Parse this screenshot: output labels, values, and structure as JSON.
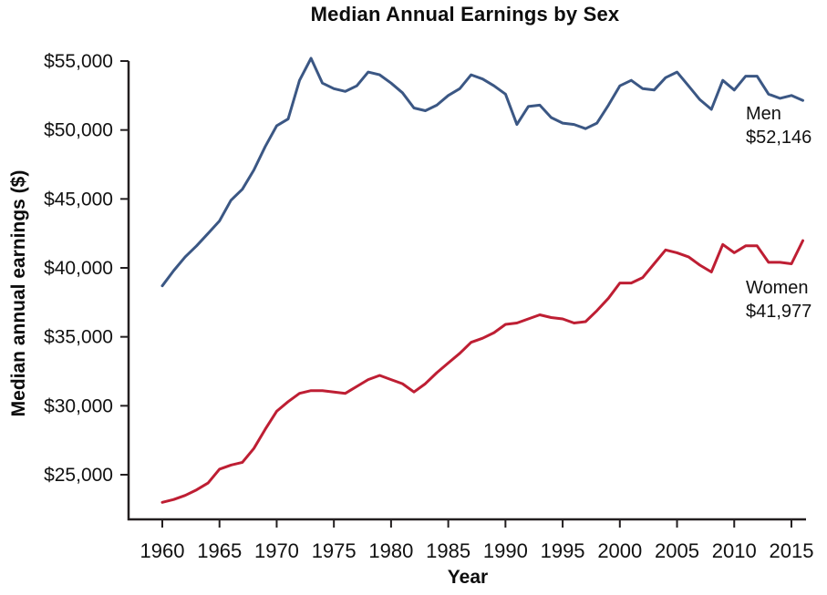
{
  "chart_data": {
    "type": "line",
    "title": "Median Annual Earnings by Sex",
    "xlabel": "Year",
    "ylabel": "Median annual earnings ($)",
    "grid": false,
    "legend_position": "end-of-line-labels",
    "x_axis": {
      "min": 1960,
      "max": 2016,
      "tick_years": [
        1960,
        1965,
        1970,
        1975,
        1980,
        1985,
        1990,
        1995,
        2000,
        2005,
        2010,
        2015
      ]
    },
    "y_axis": {
      "min": 25000,
      "max": 55000,
      "ticks": [
        {
          "value": 55000,
          "label": "$55,000"
        },
        {
          "value": 50000,
          "label": "$50,000"
        },
        {
          "value": 45000,
          "label": "$45,000"
        },
        {
          "value": 40000,
          "label": "$40,000"
        },
        {
          "value": 35000,
          "label": "$35,000"
        },
        {
          "value": 30000,
          "label": "$30,000"
        },
        {
          "value": 25000,
          "label": "$25,000"
        }
      ]
    },
    "years": [
      1960,
      1961,
      1962,
      1963,
      1964,
      1965,
      1966,
      1967,
      1968,
      1969,
      1970,
      1971,
      1972,
      1973,
      1974,
      1975,
      1976,
      1977,
      1978,
      1979,
      1980,
      1981,
      1982,
      1983,
      1984,
      1985,
      1986,
      1987,
      1988,
      1989,
      1990,
      1991,
      1992,
      1993,
      1994,
      1995,
      1996,
      1997,
      1998,
      1999,
      2000,
      2001,
      2002,
      2003,
      2004,
      2005,
      2006,
      2007,
      2008,
      2009,
      2010,
      2011,
      2012,
      2013,
      2014,
      2015,
      2016
    ],
    "series": [
      {
        "name": "Men",
        "color": "#3b5784",
        "end_label": "Men",
        "end_value_label": "$52,146",
        "final_value": 52146,
        "values": [
          38700,
          39800,
          40800,
          41600,
          42500,
          43400,
          44900,
          45700,
          47100,
          48800,
          50300,
          50800,
          53600,
          55200,
          53400,
          53000,
          52800,
          53200,
          54200,
          54000,
          53400,
          52700,
          51600,
          51400,
          51800,
          52500,
          53000,
          54000,
          53700,
          53200,
          52600,
          50400,
          51700,
          51800,
          50900,
          50500,
          50400,
          50100,
          50500,
          51800,
          53200,
          53600,
          53000,
          52900,
          53800,
          54200,
          53200,
          52200,
          51500,
          53600,
          52900,
          53900,
          53900,
          52600,
          52300,
          52500,
          52146
        ]
      },
      {
        "name": "Women",
        "color": "#be1e33",
        "end_label": "Women",
        "end_value_label": "$41,977",
        "final_value": 41977,
        "values": [
          23000,
          23200,
          23500,
          23900,
          24400,
          25400,
          25700,
          25900,
          26900,
          28300,
          29600,
          30300,
          30900,
          31100,
          31100,
          31000,
          30900,
          31400,
          31900,
          32200,
          31900,
          31600,
          31000,
          31600,
          32400,
          33100,
          33800,
          34600,
          34900,
          35300,
          35900,
          36000,
          36300,
          36600,
          36400,
          36300,
          36000,
          36100,
          36900,
          37800,
          38900,
          38900,
          39300,
          40300,
          41300,
          41100,
          40800,
          40200,
          39700,
          41700,
          41100,
          41600,
          41600,
          40400,
          40400,
          40300,
          41977
        ]
      }
    ],
    "axis_color": "#231f20",
    "text_color": "#111111"
  }
}
